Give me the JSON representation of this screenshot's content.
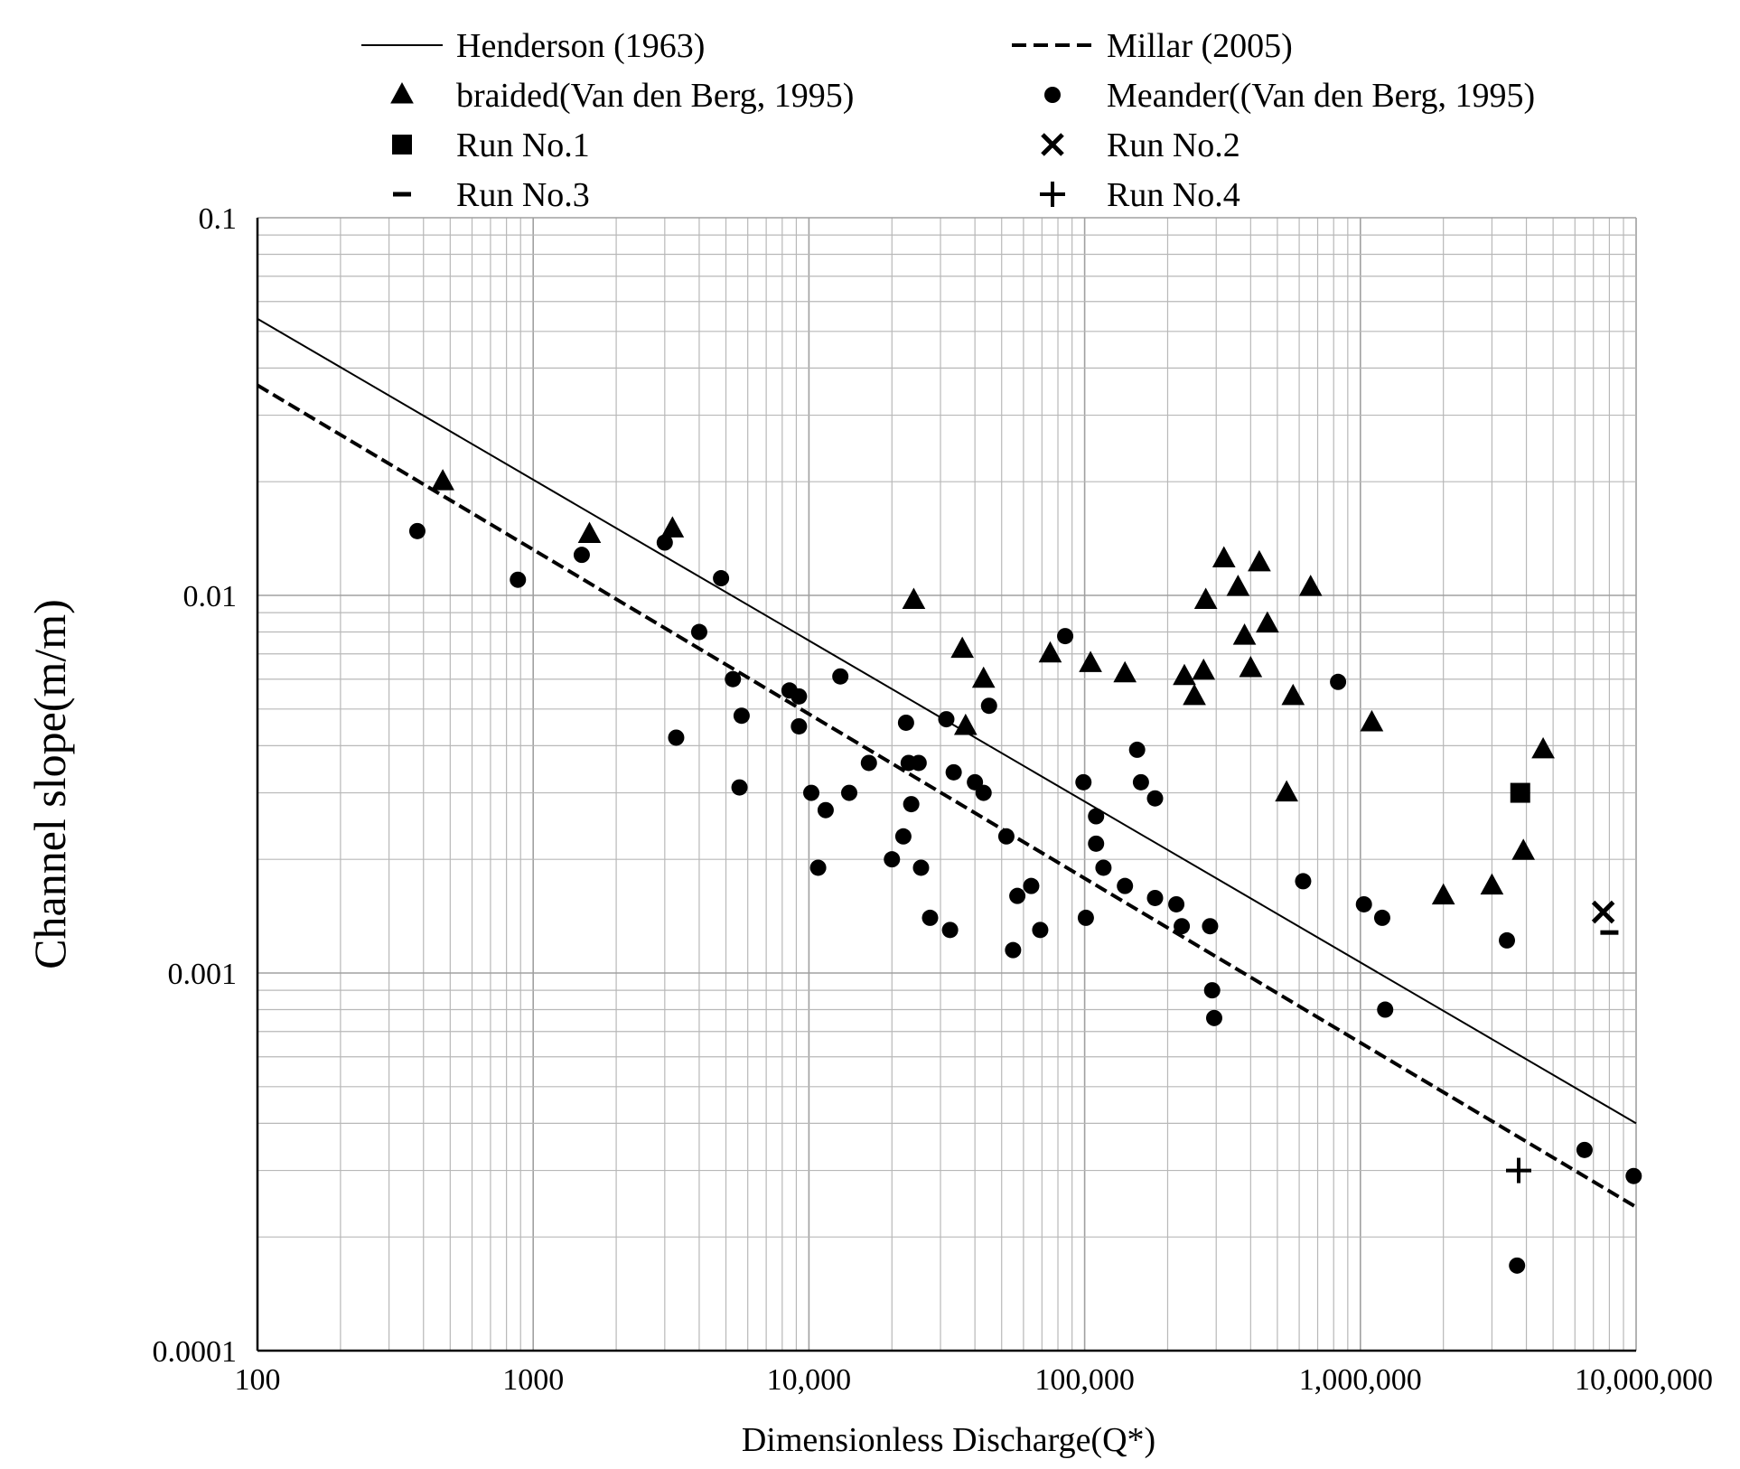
{
  "chart_data": {
    "type": "scatter",
    "title": "",
    "xlabel": "Dimensionless Discharge(Q*)",
    "ylabel": "Channel slope(m/m)",
    "xscale": "log",
    "yscale": "log",
    "xlim": [
      100,
      10000000
    ],
    "ylim": [
      0.0001,
      0.1
    ],
    "x_tick_labels": [
      {
        "value": 100,
        "label": "100"
      },
      {
        "value": 1000,
        "label": "1000"
      },
      {
        "value": 10000,
        "label": "10,000"
      },
      {
        "value": 100000,
        "label": "100,000"
      },
      {
        "value": 1000000,
        "label": "1,000,000"
      },
      {
        "value": 10000000,
        "label": "10,000,000"
      }
    ],
    "y_tick_labels": [
      {
        "value": 0.1,
        "label": "0.1"
      },
      {
        "value": 0.01,
        "label": "0.01"
      },
      {
        "value": 0.001,
        "label": "0.001"
      },
      {
        "value": 0.0001,
        "label": "0.0001"
      }
    ],
    "grid": true,
    "legend_position": "top",
    "legend": [
      {
        "key": "henderson",
        "label": "Henderson (1963)",
        "marker": "solid-line"
      },
      {
        "key": "millar",
        "label": "Millar (2005)",
        "marker": "dashed-line"
      },
      {
        "key": "braided",
        "label": "braided(Van den Berg, 1995)",
        "marker": "triangle"
      },
      {
        "key": "meander",
        "label": "Meander((Van den Berg, 1995)",
        "marker": "circle"
      },
      {
        "key": "run1",
        "label": "Run No.1",
        "marker": "square"
      },
      {
        "key": "run2",
        "label": "Run No.2",
        "marker": "x"
      },
      {
        "key": "run3",
        "label": "Run No.3",
        "marker": "dash"
      },
      {
        "key": "run4",
        "label": "Run No.4",
        "marker": "plus"
      }
    ],
    "lines": [
      {
        "name": "Henderson (1963)",
        "style": "solid",
        "x": [
          100,
          10000000
        ],
        "y": [
          0.054,
          0.0004
        ]
      },
      {
        "name": "Millar (2005)",
        "style": "dashed",
        "x": [
          100,
          10000000
        ],
        "y": [
          0.036,
          0.00024
        ]
      }
    ],
    "series": [
      {
        "name": "braided(Van den Berg, 1995)",
        "marker": "triangle",
        "points": [
          [
            470,
            0.02
          ],
          [
            1600,
            0.0145
          ],
          [
            3200,
            0.015
          ],
          [
            24000,
            0.0097
          ],
          [
            36000,
            0.0072
          ],
          [
            43000,
            0.006
          ],
          [
            37000,
            0.0045
          ],
          [
            75000,
            0.007
          ],
          [
            105000,
            0.0066
          ],
          [
            140000,
            0.0062
          ],
          [
            230000,
            0.0061
          ],
          [
            270000,
            0.0063
          ],
          [
            250000,
            0.0054
          ],
          [
            275000,
            0.0097
          ],
          [
            320000,
            0.0125
          ],
          [
            360000,
            0.0105
          ],
          [
            380000,
            0.0078
          ],
          [
            400000,
            0.0064
          ],
          [
            430000,
            0.0122
          ],
          [
            460000,
            0.0084
          ],
          [
            540000,
            0.003
          ],
          [
            570000,
            0.0054
          ],
          [
            660000,
            0.0105
          ],
          [
            1100000,
            0.0046
          ],
          [
            2000000,
            0.0016
          ],
          [
            3000000,
            0.0017
          ],
          [
            3900000,
            0.0021
          ],
          [
            4600000,
            0.0039
          ]
        ]
      },
      {
        "name": "Meander((Van den Berg, 1995)",
        "marker": "circle",
        "points": [
          [
            380,
            0.0148
          ],
          [
            880,
            0.011
          ],
          [
            1500,
            0.0128
          ],
          [
            3000,
            0.0138
          ],
          [
            3300,
            0.0042
          ],
          [
            4000,
            0.008
          ],
          [
            4800,
            0.0111
          ],
          [
            5300,
            0.006
          ],
          [
            5700,
            0.0048
          ],
          [
            5600,
            0.0031
          ],
          [
            8500,
            0.0056
          ],
          [
            9200,
            0.0054
          ],
          [
            9200,
            0.0045
          ],
          [
            10200,
            0.003
          ],
          [
            10800,
            0.0019
          ],
          [
            11500,
            0.0027
          ],
          [
            13000,
            0.0061
          ],
          [
            14000,
            0.003
          ],
          [
            16500,
            0.0036
          ],
          [
            20000,
            0.002
          ],
          [
            22000,
            0.0023
          ],
          [
            22500,
            0.0046
          ],
          [
            23000,
            0.0036
          ],
          [
            23500,
            0.0028
          ],
          [
            25000,
            0.0036
          ],
          [
            25500,
            0.0019
          ],
          [
            27500,
            0.0014
          ],
          [
            31500,
            0.0047
          ],
          [
            32500,
            0.0013
          ],
          [
            33500,
            0.0034
          ],
          [
            40000,
            0.0032
          ],
          [
            43000,
            0.003
          ],
          [
            45000,
            0.0051
          ],
          [
            52000,
            0.0023
          ],
          [
            55000,
            0.00115
          ],
          [
            57000,
            0.0016
          ],
          [
            64000,
            0.0017
          ],
          [
            69000,
            0.0013
          ],
          [
            85000,
            0.0078
          ],
          [
            99000,
            0.0032
          ],
          [
            101000,
            0.0014
          ],
          [
            110000,
            0.0026
          ],
          [
            110000,
            0.0022
          ],
          [
            117000,
            0.0019
          ],
          [
            140000,
            0.0017
          ],
          [
            155000,
            0.0039
          ],
          [
            160000,
            0.0032
          ],
          [
            180000,
            0.0029
          ],
          [
            180000,
            0.00158
          ],
          [
            215000,
            0.00152
          ],
          [
            225000,
            0.00133
          ],
          [
            285000,
            0.00133
          ],
          [
            290000,
            0.0009
          ],
          [
            295000,
            0.00076
          ],
          [
            620000,
            0.00175
          ],
          [
            830000,
            0.0059
          ],
          [
            1030000,
            0.00152
          ],
          [
            1200000,
            0.0014
          ],
          [
            1230000,
            0.0008
          ],
          [
            3400000,
            0.00122
          ],
          [
            3700000,
            0.000168
          ],
          [
            6500000,
            0.00034
          ],
          [
            9800000,
            0.00029
          ]
        ]
      },
      {
        "name": "Run No.1",
        "marker": "square",
        "points": [
          [
            3800000,
            0.003
          ]
        ]
      },
      {
        "name": "Run No.2",
        "marker": "x",
        "points": [
          [
            7600000,
            0.00145
          ]
        ]
      },
      {
        "name": "Run No.3",
        "marker": "dash",
        "points": [
          [
            8000000,
            0.00128
          ]
        ]
      },
      {
        "name": "Run No.4",
        "marker": "plus",
        "points": [
          [
            3750000,
            0.0003
          ]
        ]
      }
    ]
  }
}
